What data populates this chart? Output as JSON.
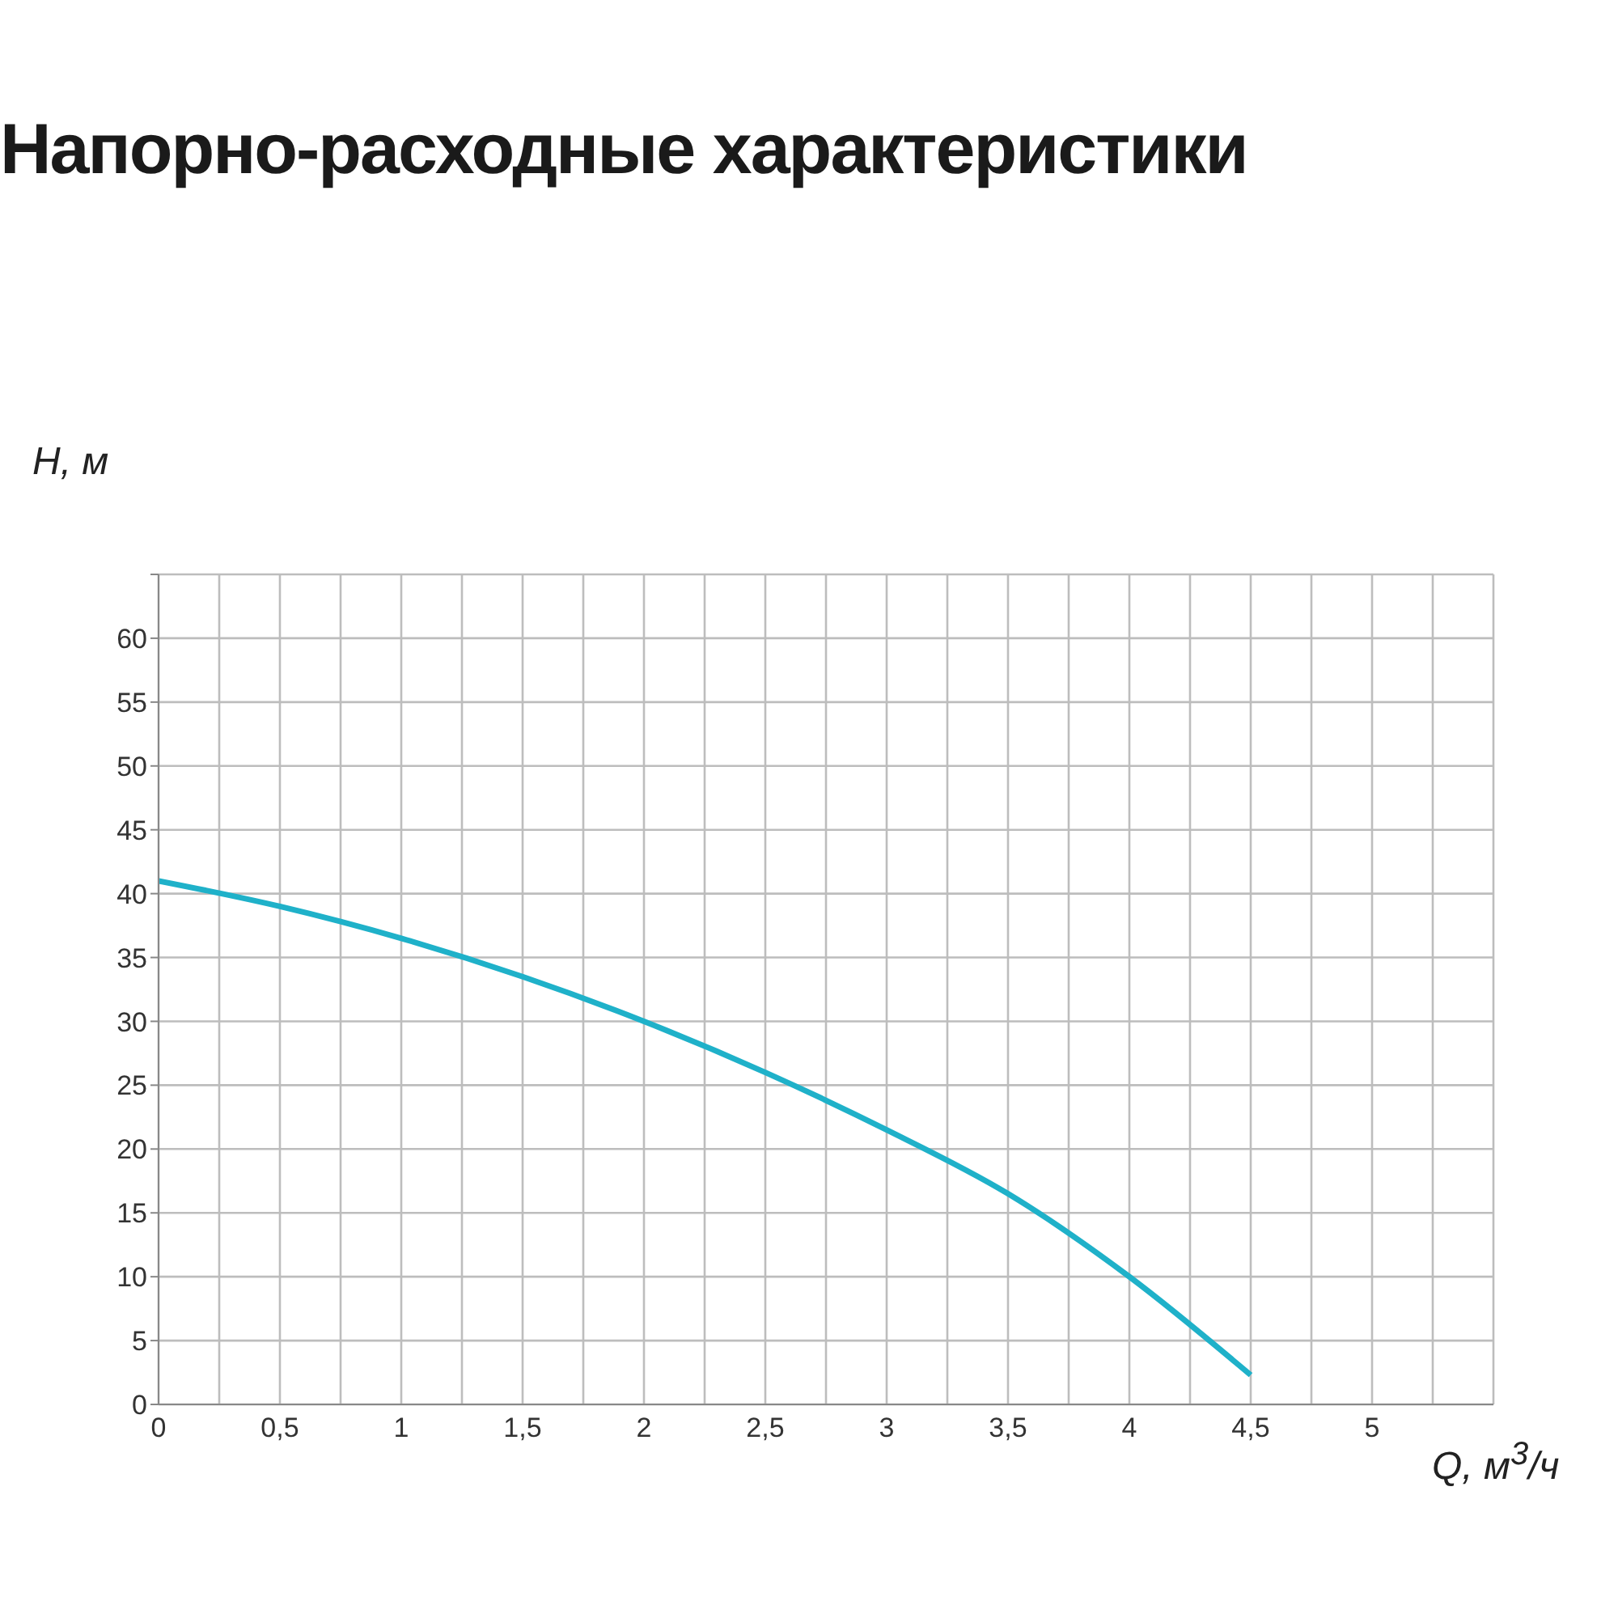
{
  "chart_data": {
    "type": "line",
    "title": "Напорно-расходные характеристики",
    "xlabel": "Q, м$^{3}$/ч",
    "ylabel": "H, м",
    "x": [
      0,
      0.5,
      1,
      1.5,
      2,
      2.5,
      3,
      3.5,
      4,
      4.5
    ],
    "series": [
      {
        "color": "#1fb1c9",
        "values": [
          41,
          39,
          36.5,
          33.5,
          30,
          26,
          21.5,
          16.5,
          10,
          2.3
        ]
      }
    ],
    "xlim": [
      0,
      5.5
    ],
    "xticks": [
      0,
      {
        "value": 0.25,
        "label": null
      },
      {
        "value": 0.5,
        "label": "0,5"
      },
      {
        "value": 0.75,
        "label": null
      },
      1,
      {
        "value": 1.25,
        "label": null
      },
      {
        "value": 1.5,
        "label": "1,5"
      },
      {
        "value": 1.75,
        "label": null
      },
      2,
      {
        "value": 2.25,
        "label": null
      },
      {
        "value": 2.5,
        "label": "2,5"
      },
      {
        "value": 2.75,
        "label": null
      },
      3,
      {
        "value": 3.25,
        "label": null
      },
      {
        "value": 3.5,
        "label": "3,5"
      },
      {
        "value": 3.75,
        "label": null
      },
      4,
      {
        "value": 4.25,
        "label": null
      },
      {
        "value": 4.5,
        "label": "4,5"
      },
      {
        "value": 4.75,
        "label": null
      },
      5,
      {
        "value": 5.25,
        "label": null
      },
      {
        "value": 5.5,
        "label": null
      }
    ],
    "ylim": [
      0,
      65
    ],
    "yticks": [
      0,
      5,
      10,
      15,
      20,
      25,
      30,
      35,
      40,
      45,
      50,
      55,
      60,
      {
        "value": 65,
        "label": null
      }
    ],
    "grid": true,
    "legend": false,
    "marker": "none",
    "line_style": "solid"
  }
}
